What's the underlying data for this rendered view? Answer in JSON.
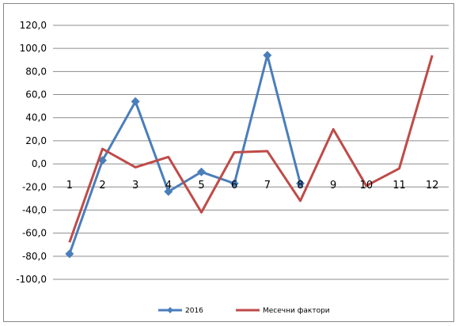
{
  "chart_data": {
    "type": "line",
    "categories": [
      "1",
      "2",
      "3",
      "4",
      "5",
      "6",
      "7",
      "8",
      "9",
      "10",
      "11",
      "12"
    ],
    "ylim": [
      -100,
      120
    ],
    "y_ticks": [
      -100,
      -80,
      -60,
      -40,
      -20,
      0,
      20,
      40,
      60,
      80,
      100,
      120
    ],
    "y_tick_labels": [
      "-100,0",
      "-80,0",
      "-60,0",
      "-40,0",
      "-20,0",
      "0,0",
      "20,0",
      "40,0",
      "60,0",
      "80,0",
      "100,0",
      "120,0"
    ],
    "grid": true,
    "legend_position": "bottom",
    "series": [
      {
        "name": "2016",
        "color": "#4a7ebb",
        "marker": "diamond",
        "values": [
          -78,
          3,
          54,
          -24,
          -7,
          -17,
          94,
          -17,
          null,
          null,
          null,
          null
        ]
      },
      {
        "name": "Месечни фактори",
        "color": "#be4b48",
        "marker": "none",
        "values": [
          -68,
          13,
          -3,
          6,
          -42,
          10,
          11,
          -32,
          30,
          -19,
          -4,
          94
        ]
      }
    ]
  }
}
